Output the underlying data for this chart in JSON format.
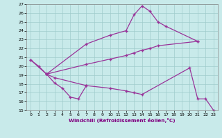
{
  "xlabel": "Windchill (Refroidissement éolien,°C)",
  "line_color": "#993399",
  "bg_color": "#c8eaea",
  "grid_color": "#a0cccc",
  "ylim": [
    15,
    27
  ],
  "xlim": [
    -0.5,
    23.5
  ],
  "yticks": [
    15,
    16,
    17,
    18,
    19,
    20,
    21,
    22,
    23,
    24,
    25,
    26,
    27
  ],
  "xticks": [
    0,
    1,
    2,
    3,
    4,
    5,
    6,
    7,
    8,
    9,
    10,
    11,
    12,
    13,
    14,
    15,
    16,
    17,
    18,
    19,
    20,
    21,
    22,
    23
  ],
  "line1_x": [
    0,
    1,
    2,
    7,
    10,
    12,
    13,
    14,
    15,
    16,
    17,
    21
  ],
  "line1_y": [
    20.7,
    20.0,
    19.1,
    22.5,
    23.5,
    24.0,
    25.8,
    26.8,
    26.2,
    25.0,
    24.5,
    22.8
  ],
  "line2_x": [
    0,
    2,
    7,
    10,
    12,
    13,
    14,
    15,
    16,
    21
  ],
  "line2_y": [
    20.7,
    19.1,
    20.2,
    20.8,
    21.2,
    21.5,
    21.8,
    22.0,
    22.3,
    22.8
  ],
  "line3_x": [
    2,
    3,
    7,
    10,
    12,
    13,
    14,
    20,
    21,
    22,
    23
  ],
  "line3_y": [
    19.1,
    18.7,
    17.8,
    17.5,
    17.2,
    17.0,
    16.8,
    19.8,
    16.3,
    16.3,
    15.0
  ],
  "line4_x": [
    2,
    3,
    4,
    5,
    6,
    7
  ],
  "line4_y": [
    19.1,
    18.1,
    17.5,
    16.5,
    16.3,
    17.8
  ]
}
